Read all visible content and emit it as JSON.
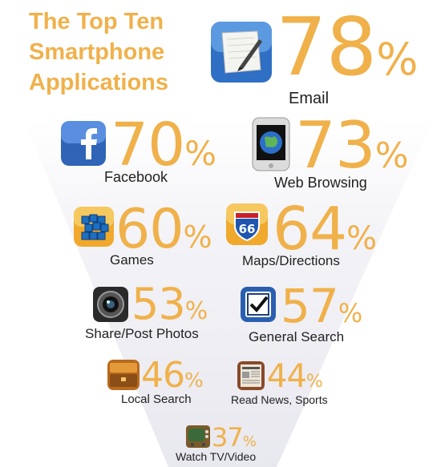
{
  "title": [
    "The Top Ten",
    "Smartphone",
    "Applications"
  ],
  "apps": {
    "email": {
      "value": "78",
      "label": "Email",
      "icon": "notepad-pen-icon"
    },
    "facebook": {
      "value": "70",
      "label": "Facebook",
      "icon": "facebook-icon"
    },
    "web": {
      "value": "73",
      "label": "Web Browsing",
      "icon": "phone-globe-icon"
    },
    "games": {
      "value": "60",
      "label": "Games",
      "icon": "blocks-icon"
    },
    "maps": {
      "value": "64",
      "label": "Maps/Directions",
      "icon": "interstate-66-icon"
    },
    "photos": {
      "value": "53",
      "label": "Share/Post Photos",
      "icon": "camera-lens-icon"
    },
    "search": {
      "value": "57",
      "label": "General Search",
      "icon": "checkbox-icon"
    },
    "local": {
      "value": "46",
      "label": "Local Search",
      "icon": "wallet-icon"
    },
    "news": {
      "value": "44",
      "label": "Read News, Sports",
      "icon": "newspaper-icon"
    },
    "tv": {
      "value": "37",
      "label": "Watch TV/Video",
      "icon": "tv-icon"
    }
  },
  "percent_symbol": "%",
  "colors": {
    "accent": "#f0b14b",
    "text": "#222222",
    "funnel": "#eeeef3"
  }
}
